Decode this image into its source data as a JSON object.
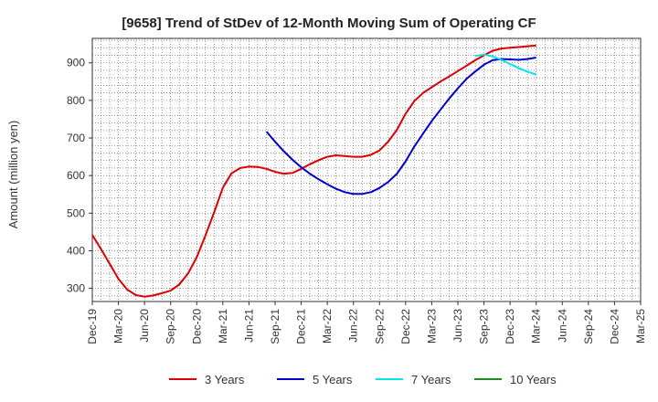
{
  "chart_data": {
    "type": "line",
    "title": "[9658]  Trend of StDev of 12-Month Moving Sum of Operating CF",
    "xlabel": "",
    "ylabel": "Amount (million yen)",
    "ylim": [
      265,
      965
    ],
    "yticks": [
      300,
      400,
      500,
      600,
      700,
      800,
      900
    ],
    "categories": [
      "Dec-19",
      "Mar-20",
      "Jun-20",
      "Sep-20",
      "Dec-20",
      "Mar-21",
      "Jun-21",
      "Sep-21",
      "Dec-21",
      "Mar-22",
      "Jun-22",
      "Sep-22",
      "Dec-22",
      "Mar-23",
      "Jun-23",
      "Sep-23",
      "Dec-23",
      "Mar-24",
      "Jun-24",
      "Sep-24",
      "Dec-24",
      "Mar-25"
    ],
    "grid": true,
    "legend_position": "bottom",
    "series": [
      {
        "name": "3 Years",
        "color": "#dd0000",
        "points": [
          [
            0,
            442
          ],
          [
            0.33,
            405
          ],
          [
            0.67,
            365
          ],
          [
            1,
            325
          ],
          [
            1.33,
            297
          ],
          [
            1.67,
            282
          ],
          [
            2,
            278
          ],
          [
            2.33,
            281
          ],
          [
            2.67,
            287
          ],
          [
            3,
            294
          ],
          [
            3.33,
            310
          ],
          [
            3.67,
            340
          ],
          [
            4,
            383
          ],
          [
            4.33,
            440
          ],
          [
            4.67,
            503
          ],
          [
            5,
            568
          ],
          [
            5.33,
            606
          ],
          [
            5.67,
            620
          ],
          [
            6,
            624
          ],
          [
            6.33,
            623
          ],
          [
            6.67,
            618
          ],
          [
            7,
            610
          ],
          [
            7.33,
            605
          ],
          [
            7.67,
            607
          ],
          [
            8,
            618
          ],
          [
            8.33,
            630
          ],
          [
            8.67,
            641
          ],
          [
            9,
            650
          ],
          [
            9.33,
            654
          ],
          [
            9.67,
            652
          ],
          [
            10,
            650
          ],
          [
            10.33,
            650
          ],
          [
            10.67,
            655
          ],
          [
            11,
            667
          ],
          [
            11.33,
            690
          ],
          [
            11.67,
            722
          ],
          [
            12,
            765
          ],
          [
            12.33,
            798
          ],
          [
            12.67,
            820
          ],
          [
            13,
            835
          ],
          [
            13.33,
            850
          ],
          [
            13.67,
            864
          ],
          [
            14,
            878
          ],
          [
            14.33,
            892
          ],
          [
            14.67,
            907
          ],
          [
            15,
            920
          ],
          [
            15.33,
            932
          ],
          [
            15.67,
            938
          ],
          [
            16,
            940
          ],
          [
            16.33,
            942
          ],
          [
            16.67,
            944
          ],
          [
            17,
            946
          ]
        ]
      },
      {
        "name": "5 Years",
        "color": "#0000cc",
        "points": [
          [
            6.67,
            717
          ],
          [
            7,
            690
          ],
          [
            7.33,
            665
          ],
          [
            7.67,
            642
          ],
          [
            8,
            622
          ],
          [
            8.33,
            605
          ],
          [
            8.67,
            590
          ],
          [
            9,
            577
          ],
          [
            9.33,
            565
          ],
          [
            9.67,
            556
          ],
          [
            10,
            551
          ],
          [
            10.33,
            551
          ],
          [
            10.67,
            556
          ],
          [
            11,
            567
          ],
          [
            11.33,
            583
          ],
          [
            11.67,
            605
          ],
          [
            12,
            638
          ],
          [
            12.33,
            677
          ],
          [
            12.67,
            712
          ],
          [
            13,
            745
          ],
          [
            13.33,
            775
          ],
          [
            13.67,
            805
          ],
          [
            14,
            832
          ],
          [
            14.33,
            857
          ],
          [
            14.67,
            877
          ],
          [
            15,
            895
          ],
          [
            15.33,
            907
          ],
          [
            15.67,
            910
          ],
          [
            16,
            909
          ],
          [
            16.33,
            908
          ],
          [
            16.67,
            910
          ],
          [
            17,
            914
          ]
        ]
      },
      {
        "name": "7 Years",
        "color": "#00e5ee",
        "points": [
          [
            14.67,
            918
          ],
          [
            15,
            922
          ],
          [
            15.33,
            917
          ],
          [
            15.67,
            908
          ],
          [
            16,
            897
          ],
          [
            16.33,
            886
          ],
          [
            16.67,
            876
          ],
          [
            17,
            869
          ]
        ]
      },
      {
        "name": "10 Years",
        "color": "#228b22",
        "points": []
      }
    ]
  }
}
